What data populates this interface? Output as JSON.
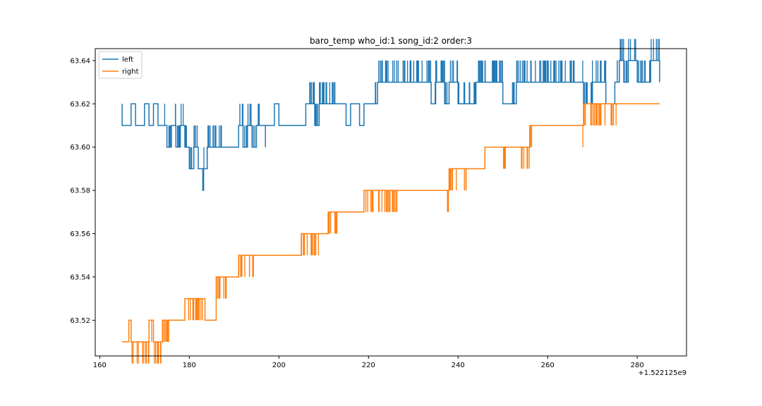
{
  "chart_data": {
    "type": "line",
    "title": "baro_temp who_id:1 song_id:2 order:3",
    "xlabel": "",
    "ylabel": "",
    "x_offset_label": "+1.522125e9",
    "xlim": [
      159,
      291
    ],
    "ylim": [
      63.5035,
      63.6455
    ],
    "x_ticks": [
      160,
      180,
      200,
      220,
      240,
      260,
      280
    ],
    "y_ticks": [
      63.52,
      63.54,
      63.56,
      63.58,
      63.6,
      63.62,
      63.64
    ],
    "grid": false,
    "legend_position": "top-left",
    "series": [
      {
        "name": "left",
        "color": "#1f77b4",
        "flicker_level": 0.01,
        "points": [
          [
            165,
            63.61
          ],
          [
            165,
            63.62
          ],
          [
            165,
            63.61
          ],
          [
            167,
            63.62
          ],
          [
            168,
            63.61
          ],
          [
            170,
            63.62
          ],
          [
            171,
            63.61
          ],
          [
            172,
            63.62
          ],
          [
            173,
            63.61
          ],
          [
            175,
            63.6
          ],
          [
            176,
            63.61
          ],
          [
            177,
            63.6
          ],
          [
            178,
            63.61
          ],
          [
            179,
            63.6
          ],
          [
            180,
            63.59
          ],
          [
            181,
            63.6
          ],
          [
            182,
            63.59
          ],
          [
            183,
            63.58
          ],
          [
            183.2,
            63.59
          ],
          [
            184,
            63.6
          ],
          [
            188,
            63.6
          ],
          [
            190,
            63.6
          ],
          [
            191,
            63.61
          ],
          [
            192,
            63.6
          ],
          [
            193,
            63.61
          ],
          [
            194,
            63.6
          ],
          [
            195,
            63.61
          ],
          [
            197,
            63.61
          ],
          [
            197,
            63.6
          ],
          [
            197,
            63.61
          ],
          [
            199,
            63.62
          ],
          [
            200,
            63.61
          ],
          [
            205,
            63.61
          ],
          [
            206,
            63.62
          ],
          [
            208,
            63.61
          ],
          [
            209,
            63.62
          ],
          [
            213,
            63.62
          ],
          [
            215,
            63.61
          ],
          [
            216,
            63.62
          ],
          [
            218,
            63.61
          ],
          [
            219,
            63.62
          ],
          [
            221,
            63.62
          ],
          [
            222,
            63.63
          ],
          [
            232,
            63.63
          ],
          [
            234,
            63.62
          ],
          [
            235,
            63.63
          ],
          [
            237,
            63.62
          ],
          [
            238,
            63.63
          ],
          [
            240,
            63.62
          ],
          [
            243,
            63.62
          ],
          [
            244,
            63.63
          ],
          [
            248,
            63.63
          ],
          [
            250,
            63.62
          ],
          [
            252,
            63.62
          ],
          [
            253,
            63.63
          ],
          [
            266,
            63.63
          ],
          [
            268,
            63.62
          ],
          [
            270,
            63.63
          ],
          [
            273,
            63.62
          ],
          [
            275,
            63.63
          ],
          [
            276,
            63.64
          ],
          [
            277,
            63.63
          ],
          [
            278,
            63.64
          ],
          [
            280,
            63.63
          ],
          [
            283,
            63.64
          ],
          [
            285,
            63.63
          ],
          [
            285,
            63.64
          ]
        ],
        "flicker_ranges": [
          [
            174.5,
            179
          ],
          [
            179,
            182
          ],
          [
            182.5,
            187.5
          ],
          [
            191,
            196
          ],
          [
            205,
            213
          ],
          [
            221.5,
            232
          ],
          [
            233,
            250
          ],
          [
            252,
            266.5
          ],
          [
            267.5,
            273
          ],
          [
            275.5,
            285
          ]
        ]
      },
      {
        "name": "right",
        "color": "#ff7f0e",
        "flicker_level": -0.01,
        "points": [
          [
            165,
            63.51
          ],
          [
            166.5,
            63.52
          ],
          [
            167,
            63.51
          ],
          [
            170,
            63.51
          ],
          [
            171,
            63.52
          ],
          [
            172,
            63.51
          ],
          [
            174,
            63.52
          ],
          [
            175,
            63.51
          ],
          [
            175,
            63.52
          ],
          [
            179,
            63.52
          ],
          [
            179,
            63.53
          ],
          [
            183.5,
            63.53
          ],
          [
            183.5,
            63.52
          ],
          [
            186,
            63.54
          ],
          [
            188,
            63.54
          ],
          [
            190,
            63.54
          ],
          [
            191,
            63.55
          ],
          [
            194,
            63.55
          ],
          [
            196,
            63.55
          ],
          [
            204,
            63.55
          ],
          [
            205,
            63.56
          ],
          [
            209,
            63.56
          ],
          [
            211,
            63.57
          ],
          [
            214,
            63.57
          ],
          [
            218,
            63.57
          ],
          [
            219,
            63.58
          ],
          [
            227,
            63.58
          ],
          [
            237,
            63.58
          ],
          [
            238,
            63.59
          ],
          [
            242,
            63.59
          ],
          [
            246,
            63.59
          ],
          [
            246,
            63.6
          ],
          [
            250,
            63.6
          ],
          [
            254,
            63.6
          ],
          [
            256,
            63.61
          ],
          [
            260,
            63.61
          ],
          [
            267,
            63.61
          ],
          [
            268,
            63.62
          ],
          [
            272,
            63.62
          ],
          [
            285,
            63.62
          ]
        ],
        "flicker_ranges": [
          [
            166.5,
            175.5
          ],
          [
            179,
            183.5
          ],
          [
            186,
            188.5
          ],
          [
            191,
            194.5
          ],
          [
            205,
            209
          ],
          [
            211,
            213.5
          ],
          [
            219,
            227
          ],
          [
            237.5,
            242
          ],
          [
            250,
            251
          ],
          [
            254,
            257
          ],
          [
            267.5,
            273
          ],
          [
            274,
            276
          ]
        ]
      }
    ]
  }
}
